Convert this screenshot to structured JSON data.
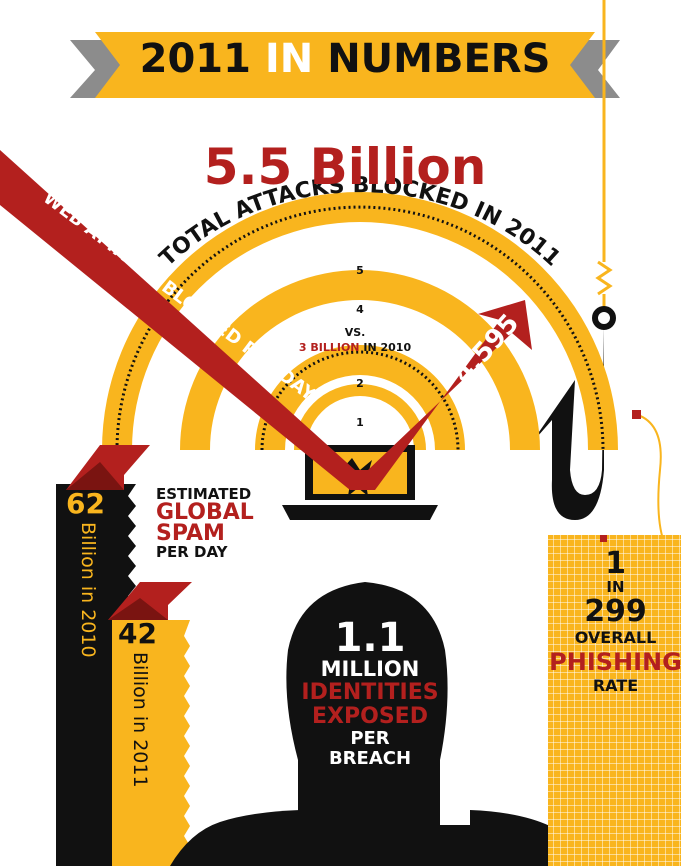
{
  "banner": {
    "part1": "2011",
    "part2": "IN",
    "part3": "NUMBERS"
  },
  "attacks": {
    "total": "5.5 Billion",
    "caption": "TOTAL ATTACKS BLOCKED IN 2011",
    "vs_label": "VS.",
    "prior_value": "3 BILLION",
    "prior_year": "IN 2010",
    "ring_labels": [
      "1",
      "2",
      "4",
      "5"
    ]
  },
  "web_attacks": {
    "label": "WEB ATTACKS BLOCKED PER DAY",
    "value": "4,595"
  },
  "spam": {
    "line1": "ESTIMATED",
    "line2": "GLOBAL",
    "line3": "SPAM",
    "line4": "PER DAY",
    "value_2010": "62",
    "label_2010": "Billion in 2010",
    "value_2011": "42",
    "label_2011": "Billion in 2011"
  },
  "identities": {
    "value": "1.1",
    "unit": "MILLION",
    "line1": "IDENTITIES",
    "line2": "EXPOSED",
    "line3": "PER",
    "line4": "BREACH"
  },
  "phishing": {
    "num": "1",
    "in": "IN",
    "denom": "299",
    "overall": "OVERALL",
    "word": "PHISHING",
    "rate": "RATE"
  },
  "colors": {
    "yellow": "#f9b51e",
    "red": "#b3201e",
    "black": "#111111",
    "gray": "#8c8c8c"
  }
}
